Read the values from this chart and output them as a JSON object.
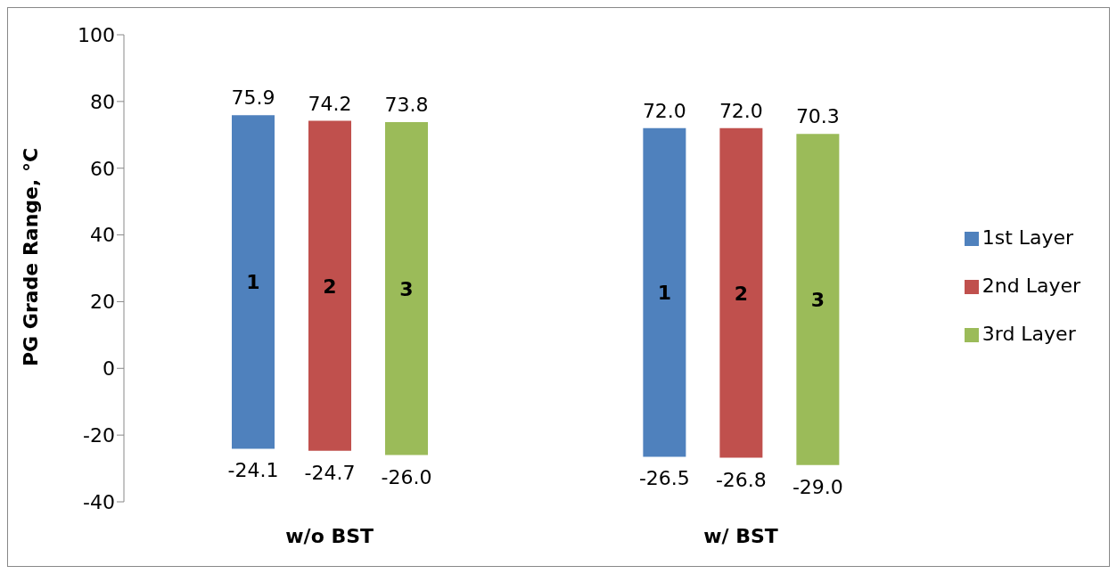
{
  "chart_data": {
    "type": "bar",
    "ylabel": "PG Grade Range, °C",
    "categories": [
      "w/o BST",
      "w/ BST"
    ],
    "series": [
      {
        "name": "1st Layer",
        "color": "#4f81bd",
        "base": [
          -24.1,
          -26.5
        ],
        "values": [
          100.0,
          98.5
        ]
      },
      {
        "name": "2nd Layer",
        "color": "#c0504d",
        "base": [
          -24.7,
          -26.8
        ],
        "values": [
          98.9,
          98.8
        ]
      },
      {
        "name": "3rd Layer",
        "color": "#9bbb59",
        "base": [
          -26.0,
          -29.0
        ],
        "values": [
          99.8,
          99.3
        ]
      }
    ],
    "ylim": [
      -40,
      100
    ],
    "yticks": [
      -40,
      -20,
      0,
      20,
      40,
      60,
      80,
      100
    ],
    "grid": false,
    "legend": "right",
    "annotations": [
      "75.9",
      "-24.1",
      "1",
      "74.2",
      "-24.7",
      "2",
      "73.8",
      "-26.0",
      "3",
      "72.0",
      "-26.5",
      "1",
      "72.0",
      "-26.8",
      "2",
      "70.3",
      "-29.0",
      "3"
    ]
  }
}
